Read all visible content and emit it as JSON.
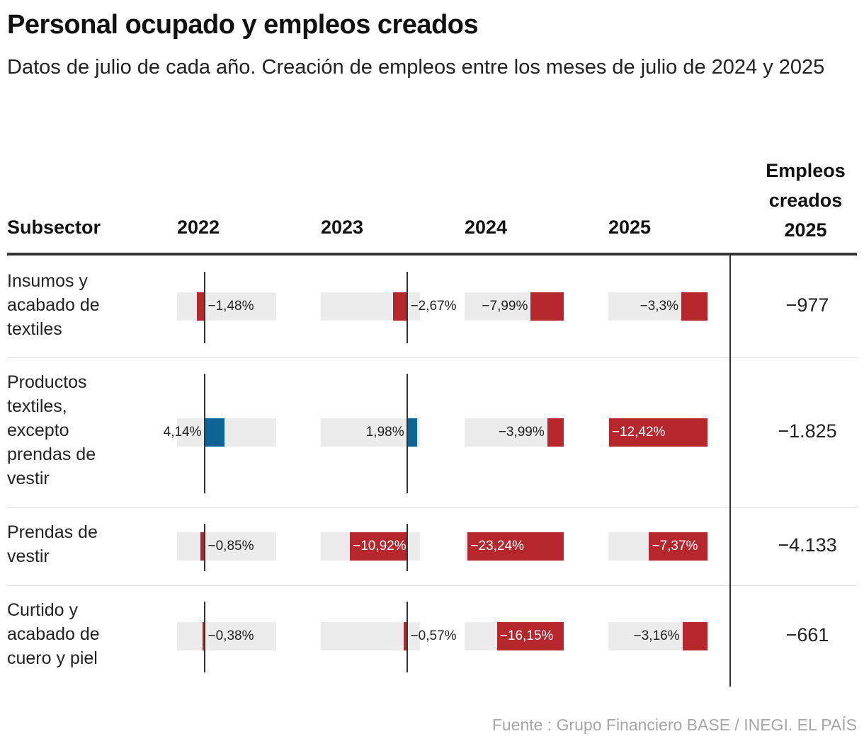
{
  "title": "Personal ocupado y empleos creados",
  "subtitle": "Datos de julio de cada año. Creación de empleos entre los meses de julio de 2024 y 2025",
  "header": {
    "subsector": "Subsector",
    "employment_line1": "Empleos",
    "employment_line2": "creados",
    "employment_line3": "2025"
  },
  "source": "Fuente : Grupo Financiero BASE / INEGI. EL PAÍS",
  "colors": {
    "negative": "#b5262d",
    "positive": "#0f6496",
    "track": "#ececec"
  },
  "chart_data": {
    "type": "bar",
    "title": "Personal ocupado y empleos creados",
    "years": [
      "2022",
      "2023",
      "2024",
      "2025"
    ],
    "axis_ranges": {
      "2022": [
        -5.5,
        14.5
      ],
      "2023": [
        -16.5,
        2.5
      ],
      "2024": [
        -24,
        0
      ],
      "2025": [
        -12.5,
        0
      ]
    },
    "rows": [
      {
        "label_lines": [
          "Insumos y",
          "acabado de",
          "textiles"
        ],
        "values": [
          -1.48,
          -2.67,
          -7.99,
          -3.3
        ],
        "value_labels": [
          "−1,48%",
          "−2,67%",
          "−7,99%",
          "−3,3%"
        ],
        "employment": "−977"
      },
      {
        "label_lines": [
          "Productos",
          "textiles,",
          "excepto",
          "prendas de",
          "vestir"
        ],
        "values": [
          4.14,
          1.98,
          -3.99,
          -12.42
        ],
        "value_labels": [
          "4,14%",
          "1,98%",
          "−3,99%",
          "−12,42%"
        ],
        "employment": "−1.825"
      },
      {
        "label_lines": [
          "Prendas de",
          "vestir"
        ],
        "values": [
          -0.85,
          -10.92,
          -23.24,
          -7.37
        ],
        "value_labels": [
          "−0,85%",
          "−10,92%",
          "−23,24%",
          "−7,37%"
        ],
        "employment": "−4.133"
      },
      {
        "label_lines": [
          "Curtido y",
          "acabado de",
          "cuero y piel"
        ],
        "values": [
          -0.38,
          -0.57,
          -16.15,
          -3.16
        ],
        "value_labels": [
          "−0,38%",
          "−0,57%",
          "−16,15%",
          "−3,16%"
        ],
        "employment": "−661"
      }
    ]
  }
}
